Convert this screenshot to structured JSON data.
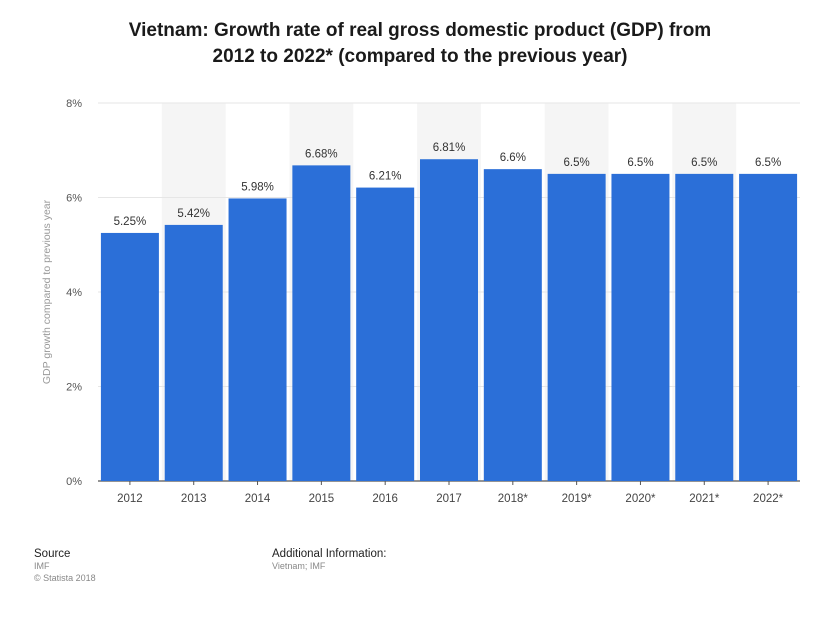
{
  "chart_data": {
    "type": "bar",
    "title_line1": "Vietnam: Growth rate of real gross domestic product (GDP) from",
    "title_line2": "2012 to 2022* (compared to the previous year)",
    "ylabel": "GDP growth compared to previous year",
    "xlabel": "",
    "categories": [
      "2012",
      "2013",
      "2014",
      "2015",
      "2016",
      "2017",
      "2018*",
      "2019*",
      "2020*",
      "2021*",
      "2022*"
    ],
    "values": [
      5.25,
      5.42,
      5.98,
      6.68,
      6.21,
      6.81,
      6.6,
      6.5,
      6.5,
      6.5,
      6.5
    ],
    "value_labels": [
      "5.25%",
      "5.42%",
      "5.98%",
      "6.68%",
      "6.21%",
      "6.81%",
      "6.6%",
      "6.5%",
      "6.5%",
      "6.5%",
      "6.5%"
    ],
    "yticks": [
      0,
      2,
      4,
      6,
      8
    ],
    "ytick_labels": [
      "0%",
      "2%",
      "4%",
      "6%",
      "8%"
    ],
    "ylim": [
      0,
      8
    ],
    "grid": true,
    "colors": {
      "bar": "#2b6fd8",
      "grid": "#e6e6e6",
      "band": "#f5f5f5"
    }
  },
  "footer": {
    "source_label": "Source",
    "source_lines": [
      "IMF",
      "© Statista 2018"
    ],
    "info_label": "Additional Information:",
    "info_lines": [
      "Vietnam; IMF"
    ]
  }
}
